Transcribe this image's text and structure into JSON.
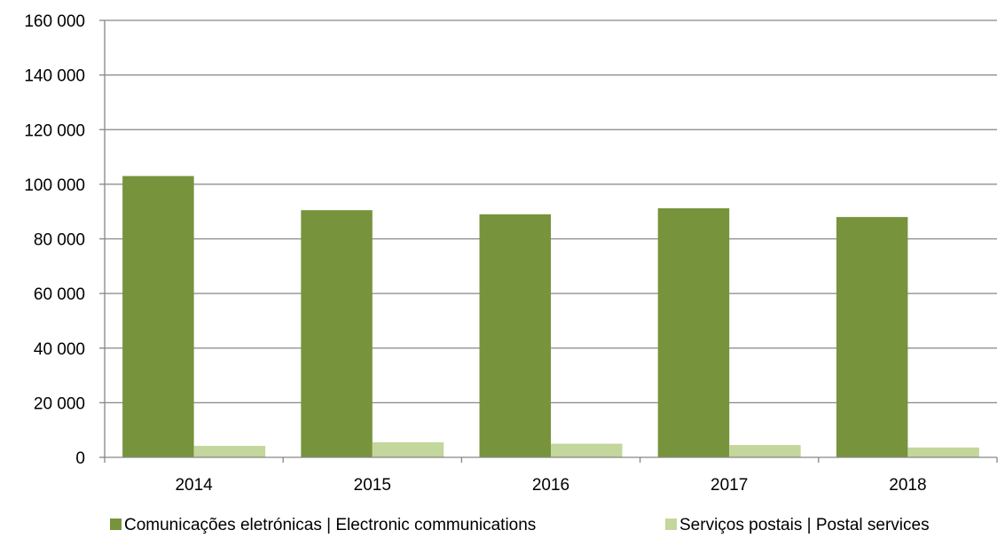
{
  "chart_data": {
    "type": "bar",
    "categories": [
      "2014",
      "2015",
      "2016",
      "2017",
      "2018"
    ],
    "series": [
      {
        "name": "Comunicações eletrónicas | Electronic communications",
        "color": "#77933c",
        "values": [
          103000,
          90500,
          89000,
          91200,
          88000
        ]
      },
      {
        "name": "Serviços postais | Postal services",
        "color": "#c3d69b",
        "values": [
          4200,
          5500,
          5000,
          4500,
          3600
        ]
      }
    ],
    "ylim": [
      0,
      160000
    ],
    "yticks": [
      0,
      20000,
      40000,
      60000,
      80000,
      100000,
      120000,
      140000,
      160000
    ],
    "ytick_labels": [
      "0",
      "20 000",
      "40 000",
      "60 000",
      "80 000",
      "100 000",
      "120 000",
      "140 000",
      "160 000"
    ],
    "grid": true,
    "legend_position": "bottom",
    "xlabel": "",
    "ylabel": "",
    "title": ""
  }
}
